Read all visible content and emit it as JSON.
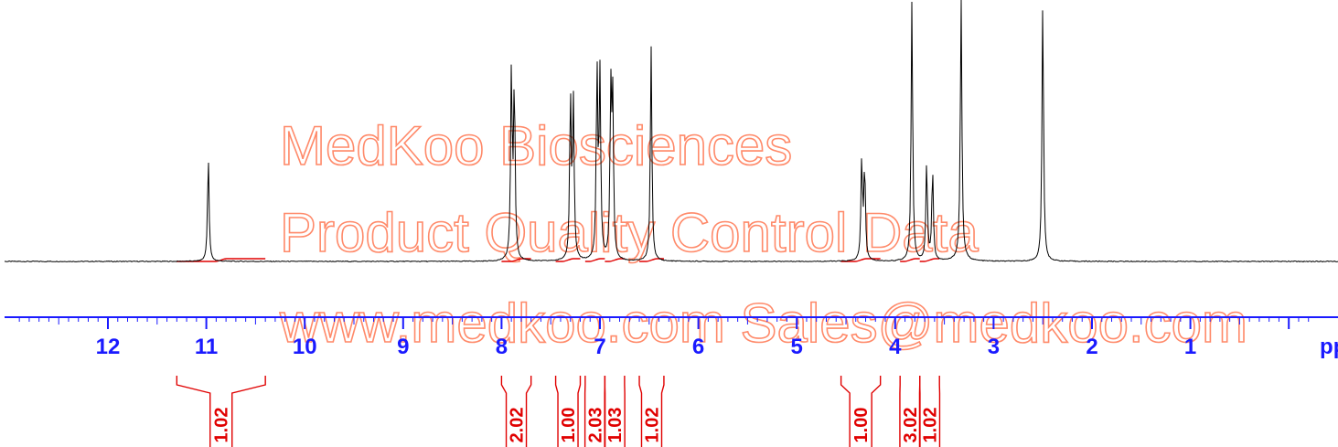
{
  "chart_data": {
    "type": "line",
    "title": "",
    "xlabel": "ppm",
    "ylabel": "",
    "xlim": [
      12.9,
      -0.2
    ],
    "x_reversed": true,
    "grid": false,
    "legend": "none",
    "tick_labels": [
      "12",
      "11",
      "10",
      "9",
      "8",
      "7",
      "6",
      "5",
      "4",
      "3",
      "2",
      "1",
      "ppm"
    ],
    "peaks": [
      {
        "ppm": 10.98,
        "height": 0.48
      },
      {
        "ppm": 7.9,
        "height": 0.86
      },
      {
        "ppm": 7.87,
        "height": 0.8
      },
      {
        "ppm": 7.3,
        "height": 0.75
      },
      {
        "ppm": 7.27,
        "height": 0.72
      },
      {
        "ppm": 7.03,
        "height": 0.87
      },
      {
        "ppm": 7.0,
        "height": 0.84
      },
      {
        "ppm": 6.89,
        "height": 0.75
      },
      {
        "ppm": 6.87,
        "height": 0.71
      },
      {
        "ppm": 6.48,
        "height": 0.99
      },
      {
        "ppm": 4.34,
        "height": 0.46
      },
      {
        "ppm": 4.31,
        "height": 0.43
      },
      {
        "ppm": 3.83,
        "height": 1.2
      },
      {
        "ppm": 3.68,
        "height": 0.45
      },
      {
        "ppm": 3.62,
        "height": 0.42
      },
      {
        "ppm": 3.33,
        "height": 1.2
      },
      {
        "ppm": 2.5,
        "height": 1.2
      }
    ],
    "integrals": [
      {
        "from": 11.3,
        "to": 10.4,
        "value": "1.02"
      },
      {
        "from": 8.0,
        "to": 7.7,
        "value": "2.02"
      },
      {
        "from": 7.45,
        "to": 7.2,
        "value": "1.00"
      },
      {
        "from": 7.15,
        "to": 6.95,
        "value": "2.03"
      },
      {
        "from": 6.95,
        "to": 6.75,
        "value": "1.03"
      },
      {
        "from": 6.6,
        "to": 6.35,
        "value": "1.02"
      },
      {
        "from": 4.55,
        "to": 4.15,
        "value": "1.00"
      },
      {
        "from": 3.95,
        "to": 3.75,
        "value": "3.02"
      },
      {
        "from": 3.75,
        "to": 3.55,
        "value": "1.02"
      }
    ],
    "colors": {
      "spectrum": "#000000",
      "integral": "#e00000",
      "axis": "#1a1aff"
    }
  },
  "watermark": {
    "line1": "MedKoo Biosciences",
    "line2": "Product Quality Control Data",
    "line3": "www.medkoo.com    Sales@medkoo.com",
    "color": "#ff8a6a"
  }
}
